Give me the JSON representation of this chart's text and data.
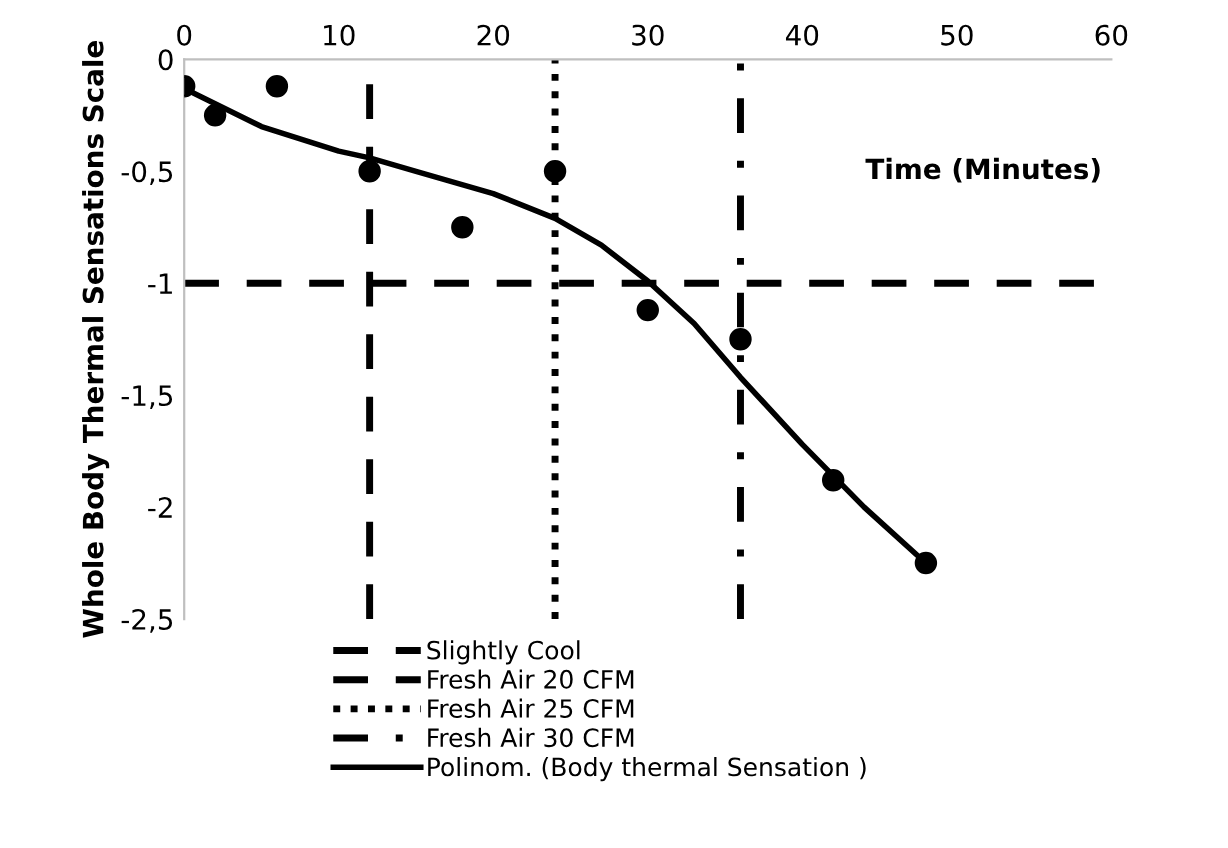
{
  "chart_data": {
    "type": "scatter",
    "xlabel": "Time (Minutes)",
    "ylabel": "Whole Body Thermal Sensations Scale",
    "xlim": [
      0,
      60
    ],
    "xticks": [
      0,
      10,
      20,
      30,
      40,
      50,
      60
    ],
    "ylim": [
      -2.5,
      0
    ],
    "yticks": [
      {
        "value": -2.5,
        "label": "-2,5"
      },
      {
        "value": -2,
        "label": "-2"
      },
      {
        "value": -1.5,
        "label": "-1,5"
      },
      {
        "value": -1,
        "label": "-1"
      },
      {
        "value": -0.5,
        "label": "-0,5"
      },
      {
        "value": 0,
        "label": "0"
      }
    ],
    "grid": false,
    "legend": "bottom left",
    "marker": "circle",
    "series": [
      {
        "color": "#000000",
        "x": [
          0,
          2,
          6,
          12,
          18,
          24,
          30,
          36,
          42,
          48
        ],
        "values": [
          -0.12,
          -0.25,
          -0.12,
          -0.5,
          -0.75,
          -0.5,
          -1.12,
          -1.25,
          -1.88,
          -2.25
        ]
      },
      {
        "type": "line",
        "name": "Polinom. (Body thermal Sensation )",
        "color": "#000000",
        "line_style": "solid",
        "marker": "none",
        "x": [
          0,
          5,
          10,
          12,
          15,
          20,
          24,
          27,
          30,
          33,
          36,
          40,
          44,
          48
        ],
        "values": [
          -0.13,
          -0.3,
          -0.41,
          -0.44,
          -0.5,
          -0.6,
          -0.71,
          -0.83,
          -0.99,
          -1.18,
          -1.42,
          -1.72,
          -2.0,
          -2.25
        ]
      }
    ],
    "ref_lines": [
      {
        "axis": "y",
        "value": -1,
        "label": "Slightly Cool",
        "color": "#000000",
        "line_style": "dashed"
      },
      {
        "axis": "x",
        "value": 12,
        "label": "Fresh Air 20 CFM",
        "color": "#000000",
        "line_style": "dashed"
      },
      {
        "axis": "x",
        "value": 24,
        "label": "Fresh Air 25 CFM",
        "color": "#000000",
        "line_style": "dotted"
      },
      {
        "axis": "x",
        "value": 36,
        "label": "Fresh Air 30 CFM",
        "color": "#000000",
        "line_style": "dashdot"
      }
    ]
  }
}
